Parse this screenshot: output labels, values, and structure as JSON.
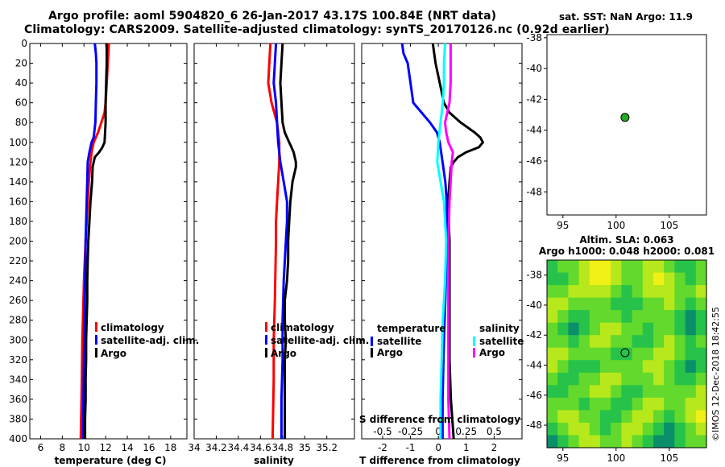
{
  "header": {
    "title_line1": "Argo profile: aoml 5904820_6 26-Jan-2017 43.17S 100.84E (NRT data)",
    "title_line2": "Climatology: CARS2009. Satellite-adjusted climatology: synTS_20170126.nc (0.92d earlier)"
  },
  "credit": "©IMOS 12-Dec-2018 18:42:55",
  "colors": {
    "climatology": "#ff0000",
    "satellite": "#0000ff",
    "argo": "#000000",
    "salinity_satellite": "#00ffff",
    "salinity_argo": "#ff00ff",
    "marker": "#22aa22"
  },
  "chart_data": [
    {
      "type": "line",
      "id": "temperature",
      "xlabel": "temperature (deg C)",
      "ylabel": "",
      "xlim": [
        5,
        19.5
      ],
      "ylim": [
        400,
        0
      ],
      "xticks": [
        6,
        8,
        10,
        12,
        14,
        16,
        18
      ],
      "yticks": [
        0,
        20,
        40,
        60,
        80,
        100,
        120,
        140,
        160,
        180,
        200,
        220,
        240,
        260,
        280,
        300,
        320,
        340,
        360,
        380,
        400
      ],
      "legend": [
        {
          "label": "climatology",
          "color_key": "climatology"
        },
        {
          "label": "satellite-adj. clim.",
          "color_key": "satellite"
        },
        {
          "label": "Argo",
          "color_key": "argo"
        }
      ],
      "series": [
        {
          "name": "climatology",
          "color_key": "climatology",
          "depth": [
            0,
            20,
            40,
            60,
            70,
            80,
            90,
            100,
            110,
            120,
            140,
            160,
            180,
            200,
            240,
            280,
            300,
            340,
            400
          ],
          "values": [
            12.3,
            12.2,
            12.1,
            12.0,
            11.9,
            11.6,
            11.3,
            10.9,
            10.7,
            10.6,
            10.45,
            10.35,
            10.25,
            10.15,
            10.0,
            9.9,
            9.85,
            9.8,
            9.7
          ]
        },
        {
          "name": "satellite-adj. clim.",
          "color_key": "satellite",
          "depth": [
            0,
            10,
            20,
            40,
            60,
            80,
            95,
            100,
            110,
            120,
            140,
            160,
            200,
            240,
            280,
            320,
            360,
            400
          ],
          "values": [
            11.0,
            11.1,
            11.15,
            11.15,
            11.1,
            11.05,
            10.9,
            10.7,
            10.5,
            10.35,
            10.3,
            10.25,
            10.15,
            10.1,
            10.05,
            10.0,
            9.95,
            9.9
          ]
        },
        {
          "name": "Argo",
          "color_key": "argo",
          "depth": [
            0,
            20,
            40,
            60,
            80,
            100,
            105,
            110,
            115,
            120,
            125,
            140,
            160,
            180,
            200,
            220,
            240,
            260,
            280,
            300,
            320,
            340,
            360,
            380,
            400
          ],
          "values": [
            12.1,
            12.1,
            12.05,
            12.0,
            12.0,
            11.9,
            11.7,
            11.4,
            11.0,
            10.9,
            10.8,
            10.75,
            10.6,
            10.5,
            10.4,
            10.35,
            10.3,
            10.3,
            10.25,
            10.2,
            10.2,
            10.15,
            10.15,
            10.1,
            10.1
          ]
        }
      ]
    },
    {
      "type": "line",
      "id": "salinity",
      "xlabel": "salinity",
      "ylabel": "",
      "xlim": [
        34.0,
        35.45
      ],
      "ylim": [
        400,
        0
      ],
      "xticks": [
        34,
        34.2,
        34.4,
        34.6,
        34.8,
        35,
        35.2
      ],
      "legend": [
        {
          "label": "climatology",
          "color_key": "climatology"
        },
        {
          "label": "satellite-adj. clim.",
          "color_key": "satellite"
        },
        {
          "label": "Argo",
          "color_key": "argo"
        }
      ],
      "series": [
        {
          "name": "climatology",
          "color_key": "climatology",
          "depth": [
            0,
            20,
            40,
            60,
            80,
            100,
            120,
            140,
            160,
            180,
            200,
            260,
            300,
            340,
            400
          ],
          "values": [
            34.69,
            34.68,
            34.67,
            34.7,
            34.75,
            34.77,
            34.77,
            34.76,
            34.75,
            34.74,
            34.74,
            34.73,
            34.72,
            34.72,
            34.71
          ]
        },
        {
          "name": "satellite-adj. clim.",
          "color_key": "satellite",
          "depth": [
            0,
            20,
            40,
            60,
            80,
            100,
            120,
            140,
            160,
            180,
            200,
            240,
            280,
            300,
            320,
            360,
            400
          ],
          "values": [
            34.74,
            34.73,
            34.72,
            34.74,
            34.75,
            34.76,
            34.78,
            34.81,
            34.84,
            34.84,
            34.83,
            34.81,
            34.8,
            34.8,
            34.8,
            34.79,
            34.79
          ]
        },
        {
          "name": "Argo",
          "color_key": "argo",
          "depth": [
            0,
            20,
            40,
            60,
            80,
            90,
            100,
            105,
            110,
            115,
            120,
            125,
            130,
            140,
            160,
            180,
            200,
            220,
            240,
            260,
            280,
            300,
            320,
            340,
            360,
            380,
            400
          ],
          "values": [
            34.8,
            34.79,
            34.78,
            34.79,
            34.8,
            34.82,
            34.86,
            34.88,
            34.9,
            34.91,
            34.92,
            34.92,
            34.91,
            34.89,
            34.87,
            34.86,
            34.85,
            34.85,
            34.84,
            34.82,
            34.82,
            34.83,
            34.82,
            34.82,
            34.82,
            34.82,
            34.82
          ]
        }
      ]
    },
    {
      "type": "line",
      "id": "difference",
      "xlabel": "T difference from climatology",
      "xlabel_top": "S difference from climatology",
      "xlim": [
        -2.75,
        3.0
      ],
      "ylim": [
        400,
        0
      ],
      "xticks": [
        -2,
        -1,
        0,
        1,
        2
      ],
      "xticks_s": [
        "-0.5",
        "-0.25",
        "0",
        "0.25",
        "0.5"
      ],
      "xticks_s_values": [
        -0.5,
        -0.25,
        0,
        0.25,
        0.5
      ],
      "s_scale": 4,
      "legend": [
        {
          "group": "temperature",
          "items": [
            {
              "label": "satellite",
              "color_key": "satellite"
            },
            {
              "label": "Argo",
              "color_key": "argo"
            }
          ]
        },
        {
          "group": "salinity",
          "items": [
            {
              "label": "satellite",
              "color_key": "salinity_satellite"
            },
            {
              "label": "Argo",
              "color_key": "salinity_argo"
            }
          ]
        }
      ],
      "series": [
        {
          "name": "T satellite",
          "color_key": "satellite",
          "depth": [
            0,
            10,
            20,
            40,
            60,
            70,
            80,
            90,
            100,
            110,
            120,
            140,
            160,
            200,
            260,
            300,
            360,
            400
          ],
          "values": [
            -1.3,
            -1.25,
            -1.1,
            -1.0,
            -0.9,
            -0.6,
            -0.3,
            -0.05,
            0.05,
            0.1,
            0.15,
            0.25,
            0.3,
            0.3,
            0.25,
            0.2,
            0.15,
            0.15
          ]
        },
        {
          "name": "T Argo",
          "color_key": "argo",
          "depth": [
            0,
            10,
            20,
            40,
            60,
            70,
            80,
            90,
            95,
            100,
            105,
            110,
            115,
            120,
            125,
            140,
            160,
            200,
            240,
            280,
            320,
            360,
            380,
            400
          ],
          "values": [
            -0.2,
            -0.15,
            -0.1,
            0.05,
            0.2,
            0.4,
            0.8,
            1.3,
            1.5,
            1.6,
            1.45,
            1.0,
            0.7,
            0.55,
            0.45,
            0.4,
            0.35,
            0.4,
            0.4,
            0.4,
            0.4,
            0.45,
            0.5,
            0.55
          ]
        },
        {
          "name": "S satellite",
          "color_key": "salinity_satellite",
          "depth": [
            0,
            20,
            40,
            60,
            80,
            100,
            120,
            140,
            160,
            200,
            240,
            280,
            320,
            360,
            400
          ],
          "values": [
            0.06,
            0.05,
            0.05,
            0.04,
            0.02,
            0.0,
            -0.01,
            0.02,
            0.05,
            0.07,
            0.06,
            0.04,
            0.03,
            0.02,
            0.02
          ]
        },
        {
          "name": "S Argo",
          "color_key": "salinity_argo",
          "depth": [
            0,
            20,
            40,
            60,
            80,
            90,
            100,
            110,
            120,
            140,
            160,
            200,
            240,
            280,
            320,
            360,
            400
          ],
          "values": [
            0.11,
            0.11,
            0.11,
            0.1,
            0.06,
            0.07,
            0.09,
            0.13,
            0.12,
            0.11,
            0.1,
            0.09,
            0.09,
            0.09,
            0.09,
            0.09,
            0.1
          ]
        }
      ]
    },
    {
      "type": "scatter",
      "id": "sst-map",
      "title": "sat. SST: NaN Argo: 11.9",
      "xlim": [
        93.5,
        108.5
      ],
      "ylim": [
        -49.5,
        -37.8
      ],
      "xticks": [
        95,
        100,
        105
      ],
      "yticks": [
        -38,
        -40,
        -42,
        -44,
        -46,
        -48
      ],
      "points": [
        {
          "x": 100.84,
          "y": -43.17
        }
      ]
    },
    {
      "type": "heatmap",
      "id": "sla-map",
      "title_line1": "Altim. SLA: 0.063",
      "title_line2": "Argo h1000: 0.048 h2000: 0.081",
      "xlim": [
        93.5,
        108.5
      ],
      "ylim": [
        -49.5,
        -37.0
      ],
      "xticks": [
        95,
        100,
        105
      ],
      "yticks": [
        -38,
        -40,
        -42,
        -44,
        -46,
        -48
      ],
      "points": [
        {
          "x": 100.84,
          "y": -43.17
        }
      ],
      "colormap": [
        "#0b8f6a",
        "#27c24a",
        "#62d92c",
        "#b6e81b",
        "#f0f016"
      ],
      "cells": [
        [
          1,
          2,
          2,
          3,
          4,
          4,
          3,
          2,
          2,
          3,
          3,
          2,
          1,
          1,
          2
        ],
        [
          1,
          1,
          2,
          3,
          4,
          4,
          3,
          2,
          2,
          3,
          4,
          3,
          2,
          1,
          2
        ],
        [
          2,
          2,
          3,
          3,
          3,
          3,
          2,
          1,
          2,
          3,
          3,
          3,
          2,
          2,
          3
        ],
        [
          3,
          3,
          2,
          2,
          2,
          2,
          1,
          1,
          1,
          2,
          2,
          3,
          2,
          1,
          2
        ],
        [
          3,
          2,
          1,
          1,
          2,
          2,
          2,
          1,
          2,
          2,
          2,
          2,
          1,
          0,
          1
        ],
        [
          2,
          1,
          0,
          1,
          2,
          3,
          3,
          2,
          2,
          1,
          2,
          2,
          1,
          0,
          1
        ],
        [
          2,
          2,
          1,
          2,
          3,
          3,
          2,
          2,
          1,
          1,
          2,
          3,
          2,
          1,
          2
        ],
        [
          3,
          3,
          2,
          2,
          2,
          2,
          1,
          1,
          2,
          2,
          3,
          3,
          2,
          1,
          1
        ],
        [
          3,
          2,
          1,
          1,
          1,
          2,
          2,
          2,
          2,
          3,
          3,
          2,
          1,
          0,
          1
        ],
        [
          2,
          1,
          1,
          2,
          2,
          3,
          3,
          2,
          2,
          2,
          3,
          2,
          1,
          1,
          2
        ],
        [
          1,
          1,
          2,
          2,
          3,
          3,
          2,
          1,
          1,
          2,
          2,
          2,
          2,
          2,
          3
        ],
        [
          2,
          2,
          2,
          1,
          2,
          2,
          1,
          1,
          2,
          3,
          3,
          2,
          2,
          3,
          3
        ],
        [
          2,
          3,
          3,
          2,
          2,
          1,
          1,
          2,
          3,
          3,
          2,
          1,
          2,
          3,
          4
        ],
        [
          1,
          2,
          3,
          3,
          2,
          1,
          2,
          3,
          3,
          2,
          1,
          0,
          1,
          2,
          3
        ],
        [
          0,
          1,
          2,
          3,
          3,
          2,
          2,
          3,
          2,
          1,
          0,
          0,
          1,
          2,
          2
        ]
      ]
    }
  ]
}
